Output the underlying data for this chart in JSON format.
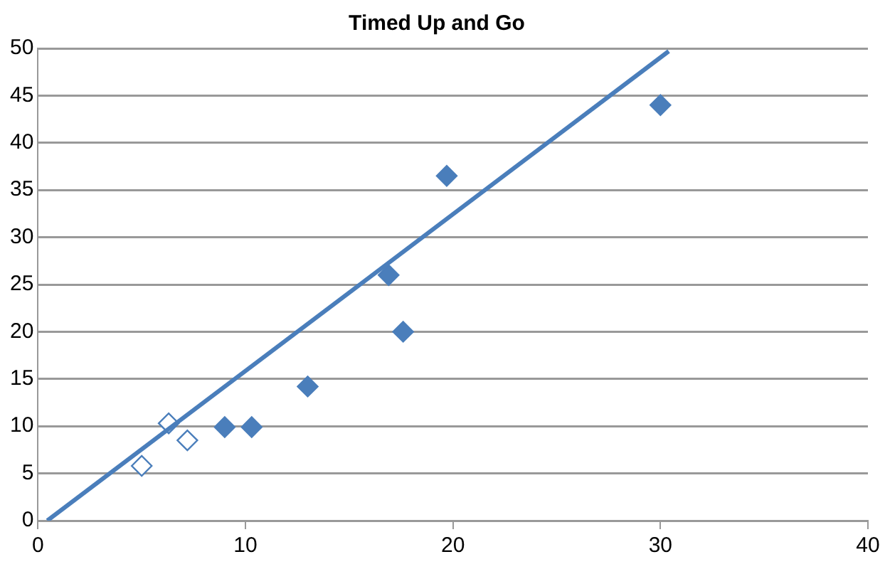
{
  "chart_data": {
    "type": "scatter",
    "title": "Timed Up and Go",
    "marker": "diamond",
    "grid": "y",
    "legend": false,
    "xlim": [
      0,
      40
    ],
    "xticks": [
      0,
      10,
      20,
      30,
      40
    ],
    "ylim": [
      0,
      50
    ],
    "yticks": [
      0,
      5,
      10,
      15,
      20,
      25,
      30,
      35,
      40,
      45,
      50
    ],
    "series": [
      {
        "color": "#4a7ebb",
        "x": [
          9,
          10.3,
          13,
          16.9,
          17.6,
          19.7,
          30
        ],
        "values": [
          9.9,
          9.9,
          14.2,
          26,
          20,
          36.5,
          44
        ]
      },
      {
        "color": "#ffffff",
        "x": [
          5,
          6.3,
          7.2
        ],
        "values": [
          5.8,
          10.3,
          8.5
        ]
      },
      {
        "type": "line",
        "color": "#4a7ebb",
        "marker": "none",
        "x": [
          0.45,
          30.4
        ],
        "values": [
          0,
          49.7
        ]
      }
    ]
  }
}
